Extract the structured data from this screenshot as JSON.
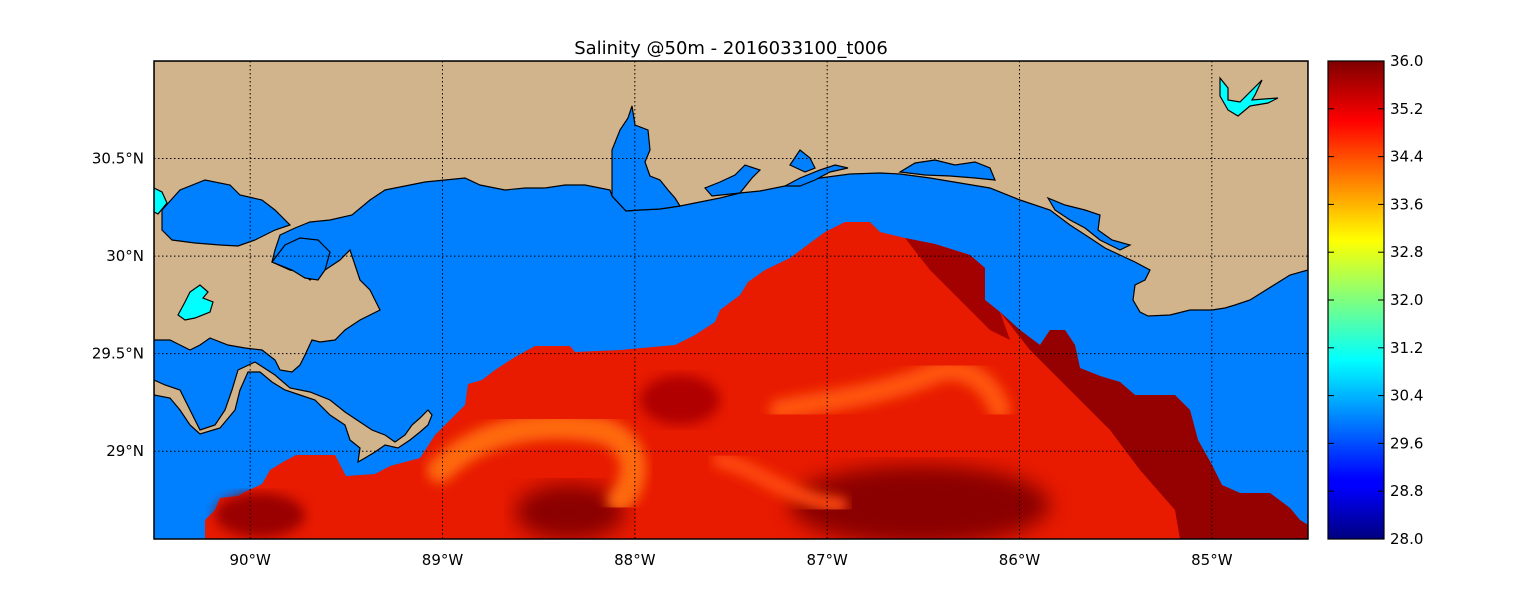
{
  "map": {
    "title": "Salinity @50m - 2016033100_t006",
    "lon_range": [
      -90.5,
      -84.5
    ],
    "lat_range": [
      28.55,
      31.0
    ],
    "gridlines": true,
    "lon_ticks": [
      {
        "value": -90,
        "label": "90°W"
      },
      {
        "value": -89,
        "label": "89°W"
      },
      {
        "value": -88,
        "label": "88°W"
      },
      {
        "value": -87,
        "label": "87°W"
      },
      {
        "value": -86,
        "label": "86°W"
      },
      {
        "value": -85,
        "label": "85°W"
      }
    ],
    "lat_ticks": [
      {
        "value": 30.5,
        "label": "30.5°N"
      },
      {
        "value": 30.0,
        "label": "30°N"
      },
      {
        "value": 29.5,
        "label": "29.5°N"
      },
      {
        "value": 29.0,
        "label": "29°N"
      }
    ],
    "colors": {
      "land": "#d2b48c",
      "ocean": "#0080ff",
      "lakes": "#00ffff",
      "coastline": "#000000"
    },
    "colorbar": {
      "min": 28.0,
      "max": 36.0,
      "colormap": "jet",
      "position": "right",
      "ticks": [
        "36.0",
        "35.2",
        "34.4",
        "33.6",
        "32.8",
        "32.0",
        "31.2",
        "30.4",
        "29.6",
        "28.8",
        "28.0"
      ]
    }
  }
}
